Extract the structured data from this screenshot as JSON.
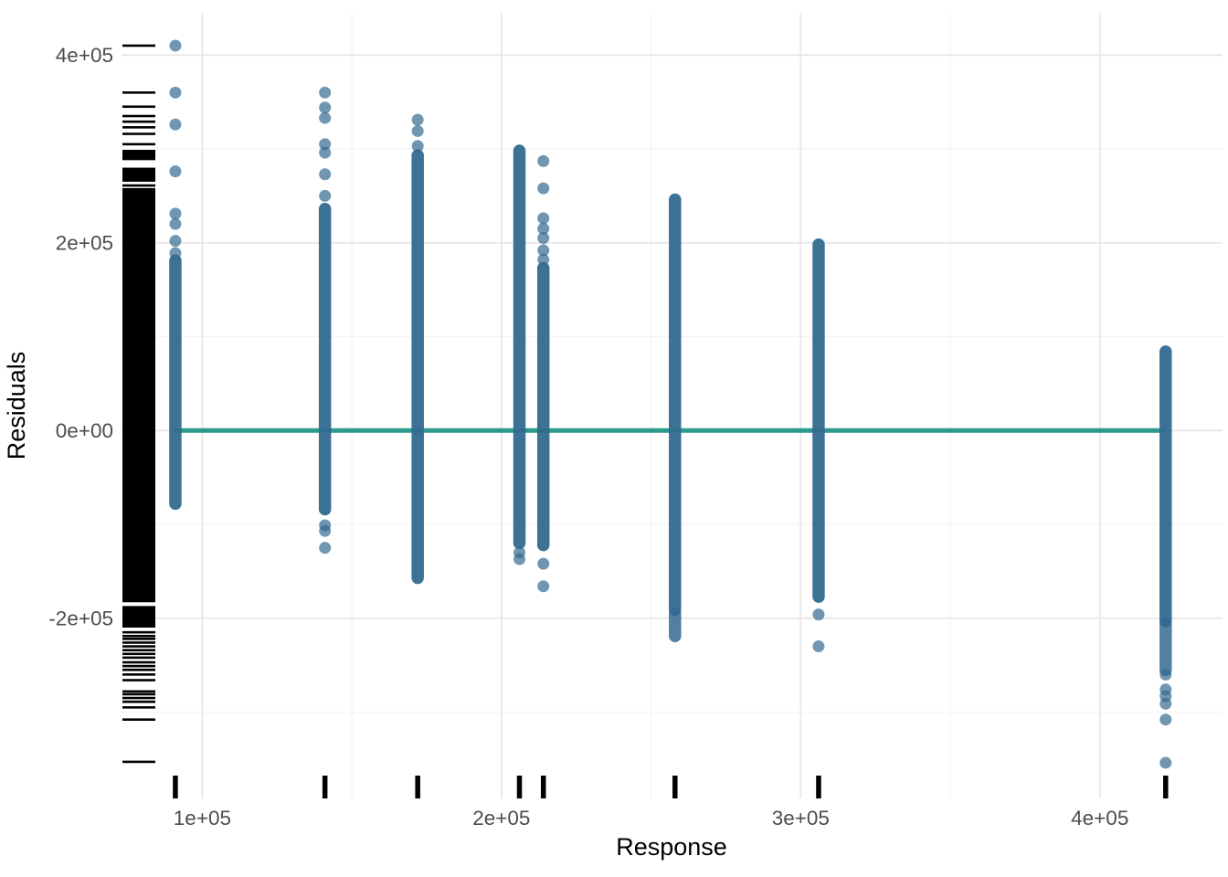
{
  "chart_data": {
    "type": "scatter",
    "title": "",
    "xlabel": "Response",
    "ylabel": "Residuals",
    "xlim": [
      73000,
      441000
    ],
    "ylim": [
      -392000,
      445000
    ],
    "grid": true,
    "legend": "none",
    "background_color": "#ffffff",
    "point_color": "#336a90",
    "point_opacity": 0.7,
    "dense_opacity": 0.95,
    "reference_line": {
      "y": 0,
      "x_start": 91000,
      "x_end": 422000,
      "color": "#2a9a8d",
      "width": 5
    },
    "x_ticks": [
      {
        "value": 100000,
        "label": "1e+05"
      },
      {
        "value": 200000,
        "label": "2e+05"
      },
      {
        "value": 300000,
        "label": "3e+05"
      },
      {
        "value": 400000,
        "label": "4e+05"
      }
    ],
    "y_ticks": [
      {
        "value": -200000,
        "label": "-2e+05"
      },
      {
        "value": 0,
        "label": "0e+00"
      },
      {
        "value": 200000,
        "label": "2e+05"
      },
      {
        "value": 400000,
        "label": "4e+05"
      }
    ],
    "x_minor": [
      150000,
      250000,
      350000
    ],
    "y_minor": [
      -300000,
      -100000,
      100000,
      300000
    ],
    "grid_major_color": "#e9e9e9",
    "grid_minor_color": "#f3f3f3",
    "tick_label_color": "#4d4d4d",
    "strips": [
      {
        "x": 91000,
        "dots": [
          410000,
          360000,
          326000,
          276000,
          231000,
          220000,
          202000,
          189000
        ],
        "dense": [
          {
            "from": 181000,
            "to": -78000
          }
        ]
      },
      {
        "x": 141000,
        "dots": [
          360000,
          344000,
          333000,
          305000,
          296000,
          273000,
          250000,
          -101000,
          -107000,
          -125000
        ],
        "dense": [
          {
            "from": 236000,
            "to": -84000
          }
        ]
      },
      {
        "x": 172000,
        "dots": [
          331000,
          319000,
          303000
        ],
        "dense": [
          {
            "from": 293000,
            "to": -157000
          }
        ]
      },
      {
        "x": 206000,
        "dots": [
          -130000,
          -137000
        ],
        "dense": [
          {
            "from": 298000,
            "to": -120000
          }
        ]
      },
      {
        "x": 214000,
        "dots": [
          287000,
          258000,
          226000,
          215000,
          205000,
          192000,
          182000,
          -142000,
          -166000
        ],
        "dense": [
          {
            "from": 173000,
            "to": -122000
          }
        ]
      },
      {
        "x": 258000,
        "dots": [],
        "dense": [
          {
            "from": 246000,
            "to": -191000
          },
          {
            "from": -195000,
            "to": -219000,
            "opacity": 0.85
          }
        ]
      },
      {
        "x": 306000,
        "dots": [
          -196000,
          -230000
        ],
        "dense": [
          {
            "from": 198000,
            "to": -177000
          }
        ]
      },
      {
        "x": 422000,
        "dots": [
          -260000,
          -276000,
          -283000,
          -291000,
          -308000,
          -354000
        ],
        "dense": [
          {
            "from": 84000,
            "to": -203000
          },
          {
            "from": -206000,
            "to": -255000,
            "opacity": 0.85
          }
        ]
      }
    ],
    "rug": {
      "color": "#000000",
      "bottom_x_values": [
        91000,
        141000,
        172000,
        206000,
        214000,
        258000,
        306000,
        422000
      ],
      "left_lines": [
        410000,
        360000,
        345000,
        335000,
        329000,
        323000,
        316000,
        305000,
        261000,
        257000,
        -215000,
        -219000,
        -222000,
        -226000,
        -230000,
        -234000,
        -238000,
        -242000,
        -247000,
        -251000,
        -255000,
        -260000,
        -266000,
        -278000,
        -281000,
        -285000,
        -289000,
        -295000,
        -308000,
        -353000
      ],
      "left_blocks": [
        [
          299000,
          288000
        ],
        [
          280000,
          265000
        ],
        [
          256000,
          -183000
        ],
        [
          -187000,
          -210000
        ]
      ]
    }
  }
}
